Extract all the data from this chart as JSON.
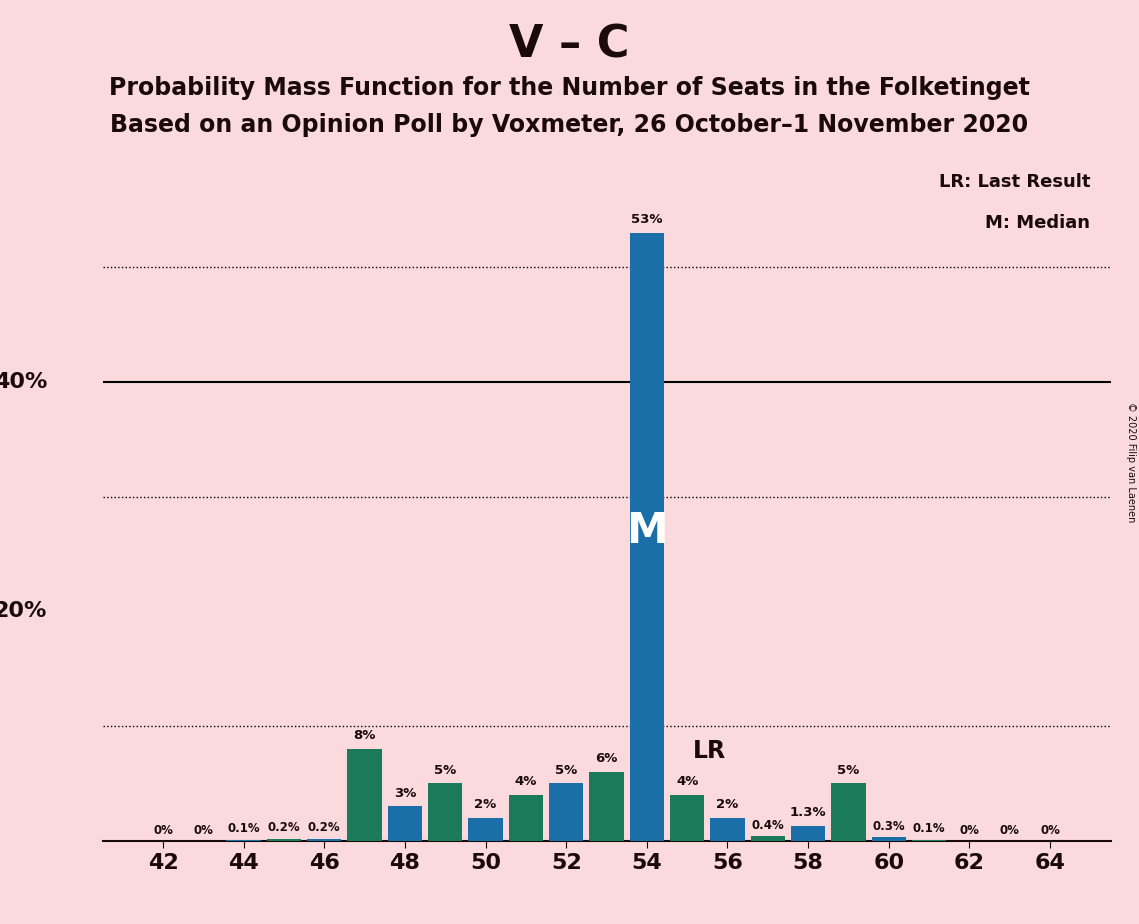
{
  "title": "V – C",
  "subtitle1": "Probability Mass Function for the Number of Seats in the Folketinget",
  "subtitle2": "Based on an Opinion Poll by Voxmeter, 26 October–1 November 2020",
  "copyright": "© 2020 Filip van Laenen",
  "seats": [
    42,
    43,
    44,
    45,
    46,
    47,
    48,
    49,
    50,
    51,
    52,
    53,
    54,
    55,
    56,
    57,
    58,
    59,
    60,
    61,
    62,
    63,
    64
  ],
  "probabilities": [
    0.0,
    0.0,
    0.1,
    0.2,
    0.2,
    8.0,
    3.0,
    5.0,
    2.0,
    4.0,
    5.0,
    6.0,
    53.0,
    4.0,
    2.0,
    0.4,
    1.3,
    5.0,
    0.3,
    0.1,
    0.0,
    0.0,
    0.0
  ],
  "bar_labels": [
    "0%",
    "0%",
    "0.1%",
    "0.2%",
    "0.2%",
    "8%",
    "3%",
    "5%",
    "2%",
    "4%",
    "5%",
    "6%",
    "53%",
    "4%",
    "2%",
    "0.4%",
    "1.3%",
    "5%",
    "0.3%",
    "0.1%",
    "0%",
    "0%",
    "0%"
  ],
  "median_seat": 54,
  "last_result_seat": 55,
  "color_blue": "#1B6FA8",
  "color_green": "#1B7A5A",
  "background_color": "#FADADD",
  "text_color": "#1a0a0a",
  "ylim": [
    0,
    60
  ],
  "dotted_lines": [
    10,
    30,
    50
  ],
  "solid_lines": [
    40
  ],
  "xtick_seats": [
    42,
    44,
    46,
    48,
    50,
    52,
    54,
    56,
    58,
    60,
    62,
    64
  ],
  "legend_lr": "LR: Last Result",
  "legend_m": "M: Median",
  "title_fontsize": 32,
  "subtitle_fontsize": 17,
  "figsize": [
    11.39,
    9.24
  ]
}
